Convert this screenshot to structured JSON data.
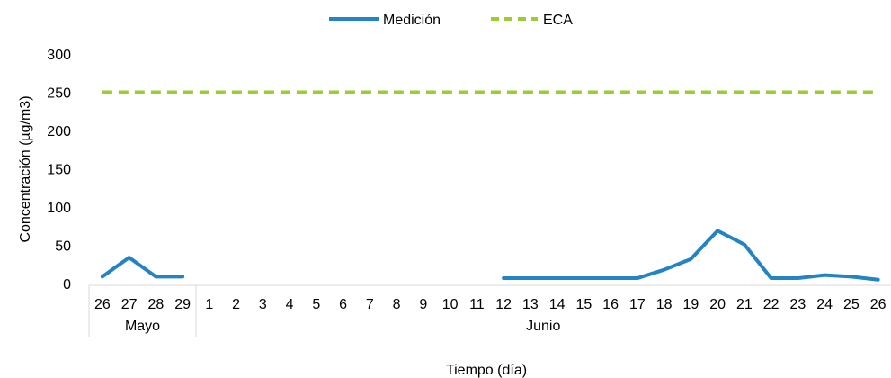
{
  "chart_data": {
    "type": "line",
    "title": "",
    "xlabel": "Tiempo  (día)",
    "ylabel": "Concentración  (µg/m3)",
    "ylim": [
      0,
      300
    ],
    "yticks": [
      0,
      50,
      100,
      150,
      200,
      250,
      300
    ],
    "grid": false,
    "legend_position": "top",
    "categories": [
      "26",
      "27",
      "28",
      "29",
      "1",
      "2",
      "3",
      "4",
      "5",
      "6",
      "7",
      "8",
      "9",
      "10",
      "11",
      "12",
      "13",
      "14",
      "15",
      "16",
      "17",
      "18",
      "19",
      "20",
      "21",
      "22",
      "23",
      "24",
      "25",
      "26"
    ],
    "groups": [
      {
        "label": "Mayo",
        "count": 4
      },
      {
        "label": "Junio",
        "count": 26
      }
    ],
    "series": [
      {
        "name": "Medición",
        "color": "#2383c4",
        "style": "solid",
        "values": [
          9,
          34,
          9,
          9,
          null,
          null,
          null,
          null,
          null,
          null,
          null,
          null,
          null,
          null,
          null,
          7,
          7,
          7,
          7,
          7,
          7,
          18,
          32,
          69,
          51,
          7,
          7,
          11,
          9,
          5
        ]
      },
      {
        "name": "ECA",
        "color": "#9acd32",
        "style": "dashed",
        "values": [
          250,
          250,
          250,
          250,
          250,
          250,
          250,
          250,
          250,
          250,
          250,
          250,
          250,
          250,
          250,
          250,
          250,
          250,
          250,
          250,
          250,
          250,
          250,
          250,
          250,
          250,
          250,
          250,
          250,
          250
        ]
      }
    ]
  }
}
